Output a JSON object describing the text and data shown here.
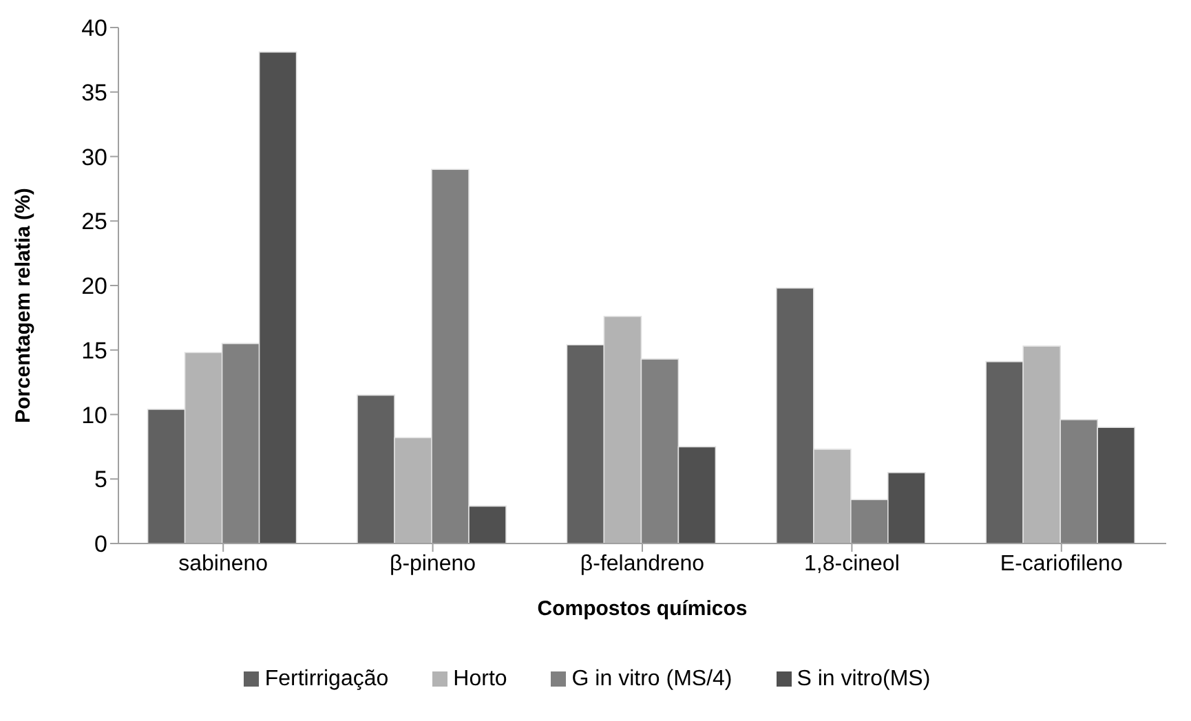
{
  "chart_data": {
    "type": "bar",
    "xlabel": "Compostos químicos",
    "ylabel": "Porcentagem relatia (%)",
    "categories": [
      "sabineno",
      "β-pineno",
      "β-felandreno",
      "1,8-cineol",
      "E-cariofileno"
    ],
    "series": [
      {
        "name": "Fertirrigação",
        "color": "#616161",
        "values": [
          10.4,
          11.5,
          15.4,
          19.8,
          14.1
        ]
      },
      {
        "name": "Horto",
        "color": "#b3b3b3",
        "values": [
          14.8,
          8.2,
          17.6,
          7.3,
          15.3
        ]
      },
      {
        "name": "G in vitro (MS/4)",
        "color": "#808080",
        "values": [
          15.5,
          29.0,
          14.3,
          3.4,
          9.6
        ]
      },
      {
        "name": "S in vitro(MS)",
        "color": "#505050",
        "values": [
          38.1,
          2.9,
          7.5,
          5.5,
          9.0
        ]
      }
    ],
    "ylim": [
      0,
      40
    ],
    "yticks": [
      0,
      5,
      10,
      15,
      20,
      25,
      30,
      35,
      40
    ],
    "grid": false,
    "legend": "bottom"
  }
}
